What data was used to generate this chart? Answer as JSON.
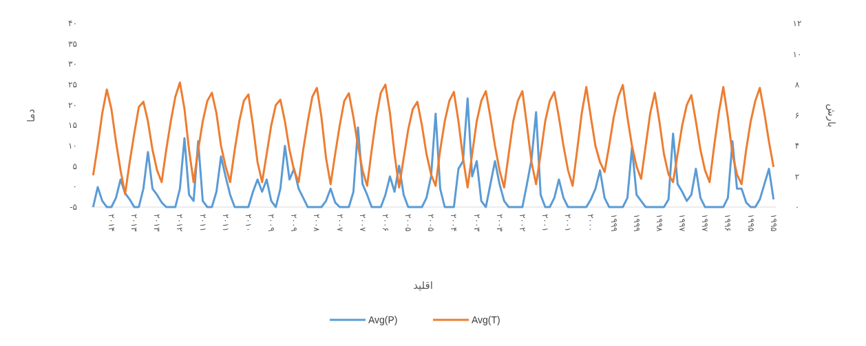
{
  "chart_data": {
    "type": "line",
    "xlabel": "اقلید",
    "ylabel": "دما",
    "y2label": "بارش",
    "categories": [
      null,
      null,
      null,
      null,
      "۲۰۱۴",
      null,
      null,
      null,
      null,
      "۲۰۱۳",
      null,
      null,
      null,
      null,
      "۲۰۱۳",
      null,
      null,
      null,
      null,
      "۲۰۱۲",
      null,
      null,
      null,
      null,
      "۲۰۱۱",
      null,
      null,
      null,
      null,
      "۲۰۱۱",
      null,
      null,
      null,
      null,
      "۲۰۱۰",
      null,
      null,
      null,
      null,
      "۲۰۰۹",
      null,
      null,
      null,
      null,
      "۲۰۰۹",
      null,
      null,
      null,
      null,
      "۲۰۰۸",
      null,
      null,
      null,
      null,
      "۲۰۰۷",
      null,
      null,
      null,
      null,
      "۲۰۰۷",
      null,
      null,
      null,
      null,
      "۲۰۰۶",
      null,
      null,
      null,
      null,
      "۲۰۰۵",
      null,
      null,
      null,
      null,
      "۲۰۰۵",
      null,
      null,
      null,
      null,
      "۲۰۰۴",
      null,
      null,
      null,
      null,
      "۲۰۰۳",
      null,
      null,
      null,
      null,
      "۲۰۰۳",
      null,
      null,
      null,
      null,
      "۲۰۰۲",
      null,
      null,
      null,
      null,
      "۲۰۰۱",
      null,
      null,
      null,
      null,
      "۲۰۰۱",
      null,
      null,
      null,
      null,
      "۲۰۰۰",
      null,
      null,
      null,
      null,
      "۱۹۹۹",
      null,
      null,
      null,
      null,
      "۱۹۹۹",
      null,
      null,
      null,
      null,
      "۱۹۹۸",
      null,
      null,
      null,
      null,
      "۱۹۹۷",
      null,
      null,
      null,
      null,
      "۱۹۹۷",
      null,
      null,
      null,
      null,
      "۱۹۹۶",
      null,
      null,
      null,
      null,
      "۱۹۹۵",
      null,
      null,
      null,
      null,
      "۱۹۹۵"
    ],
    "series": [
      {
        "name": "Avg(P)",
        "color": "#5b9bd5",
        "axis": "y2",
        "values": [
          0,
          1.3,
          0.4,
          0,
          0,
          0.6,
          1.8,
          0.9,
          0.5,
          0,
          0,
          1.2,
          3.6,
          1.2,
          0.8,
          0.3,
          0,
          0,
          0,
          1.2,
          4.5,
          0.8,
          0.4,
          4.3,
          0.4,
          0,
          0,
          1.0,
          3.3,
          2.0,
          0.8,
          0,
          0,
          0,
          0,
          1.0,
          1.8,
          1.0,
          1.8,
          0.4,
          0,
          1.2,
          4.0,
          1.8,
          2.5,
          1.2,
          0.6,
          0,
          0,
          0,
          0,
          0.4,
          1.2,
          0.3,
          0,
          0,
          0,
          1.0,
          5.2,
          1.5,
          0.8,
          0,
          0,
          0,
          0.8,
          2.0,
          1.0,
          2.7,
          0.8,
          0,
          0,
          0,
          0,
          0.6,
          2.0,
          6.1,
          1.2,
          0,
          0,
          0,
          2.5,
          3.0,
          7.1,
          2.0,
          3.0,
          0.4,
          0,
          1.5,
          3.0,
          1.5,
          0.4,
          0,
          0,
          0,
          0,
          1.5,
          3.1,
          6.2,
          0.8,
          0,
          0,
          0.6,
          1.8,
          0.6,
          0,
          0,
          0,
          0,
          0,
          0.5,
          1.2,
          2.4,
          0.6,
          0,
          0,
          0,
          0,
          0.6,
          3.9,
          0.8,
          0.4,
          0,
          0,
          0,
          0,
          0,
          0.5,
          4.8,
          1.5,
          1.0,
          0.4,
          0.8,
          2.5,
          0.6,
          0,
          0,
          0,
          0,
          0,
          0.6,
          4.3,
          1.2,
          1.2,
          0.3,
          0,
          0,
          0.5,
          1.5,
          2.5,
          0.5
        ]
      },
      {
        "name": "Avg(T)",
        "color": "#ed7d31",
        "values": [
          2.8,
          10,
          18,
          23.8,
          19,
          11,
          4,
          -1.8,
          6,
          13,
          19.5,
          20.8,
          16,
          9,
          4,
          1.1,
          9,
          16,
          22,
          25.5,
          19,
          9,
          1.1,
          9,
          16,
          21,
          23,
          18,
          10,
          5,
          1.1,
          9,
          16,
          21,
          22.6,
          15,
          6,
          1.1,
          8,
          15,
          20,
          21.3,
          16,
          9,
          4,
          1.1,
          9,
          16,
          22,
          24.2,
          17,
          7,
          0.6,
          8,
          15,
          21,
          22.9,
          17,
          10,
          4,
          0.2,
          9,
          17,
          23,
          25,
          18,
          8,
          -0.2,
          7,
          14,
          19,
          20.8,
          15,
          8,
          3,
          0.2,
          9,
          16,
          21,
          23.2,
          16,
          7,
          -0.2,
          8,
          16,
          21,
          23.4,
          17,
          10,
          4,
          -0.2,
          8,
          16,
          21,
          23.4,
          15,
          6,
          0.6,
          8,
          16,
          21,
          23.2,
          17,
          10,
          4,
          0.2,
          9,
          18,
          24.4,
          17,
          10,
          6,
          3.6,
          10,
          17,
          22,
          24.9,
          17,
          10,
          5,
          1.9,
          10,
          18,
          23,
          16,
          8,
          3,
          1.1,
          8,
          15,
          20,
          22.4,
          16,
          9,
          4,
          1.1,
          10,
          18,
          24.4,
          17,
          8,
          3,
          0.6,
          9,
          16,
          21,
          24.2,
          18,
          11,
          4.8
        ]
      }
    ],
    "ylim": [
      -5,
      40
    ],
    "yticks": [
      {
        "value": -5,
        "label": "-۵"
      },
      {
        "value": 0,
        "label": "۰"
      },
      {
        "value": 5,
        "label": "۵"
      },
      {
        "value": 10,
        "label": "۱۰"
      },
      {
        "value": 15,
        "label": "۱۵"
      },
      {
        "value": 20,
        "label": "۲۰"
      },
      {
        "value": 25,
        "label": "۲۵"
      },
      {
        "value": 30,
        "label": "۳۰"
      },
      {
        "value": 35,
        "label": "۳۵"
      },
      {
        "value": 40,
        "label": "۴۰"
      }
    ],
    "y2lim": [
      0,
      12
    ],
    "y2ticks": [
      {
        "value": 0,
        "label": "۰"
      },
      {
        "value": 2,
        "label": "۲"
      },
      {
        "value": 4,
        "label": "۴"
      },
      {
        "value": 6,
        "label": "۶"
      },
      {
        "value": 8,
        "label": "۸"
      },
      {
        "value": 10,
        "label": "۱۰"
      },
      {
        "value": 12,
        "label": "۱۲"
      }
    ],
    "legend": "bottom"
  }
}
